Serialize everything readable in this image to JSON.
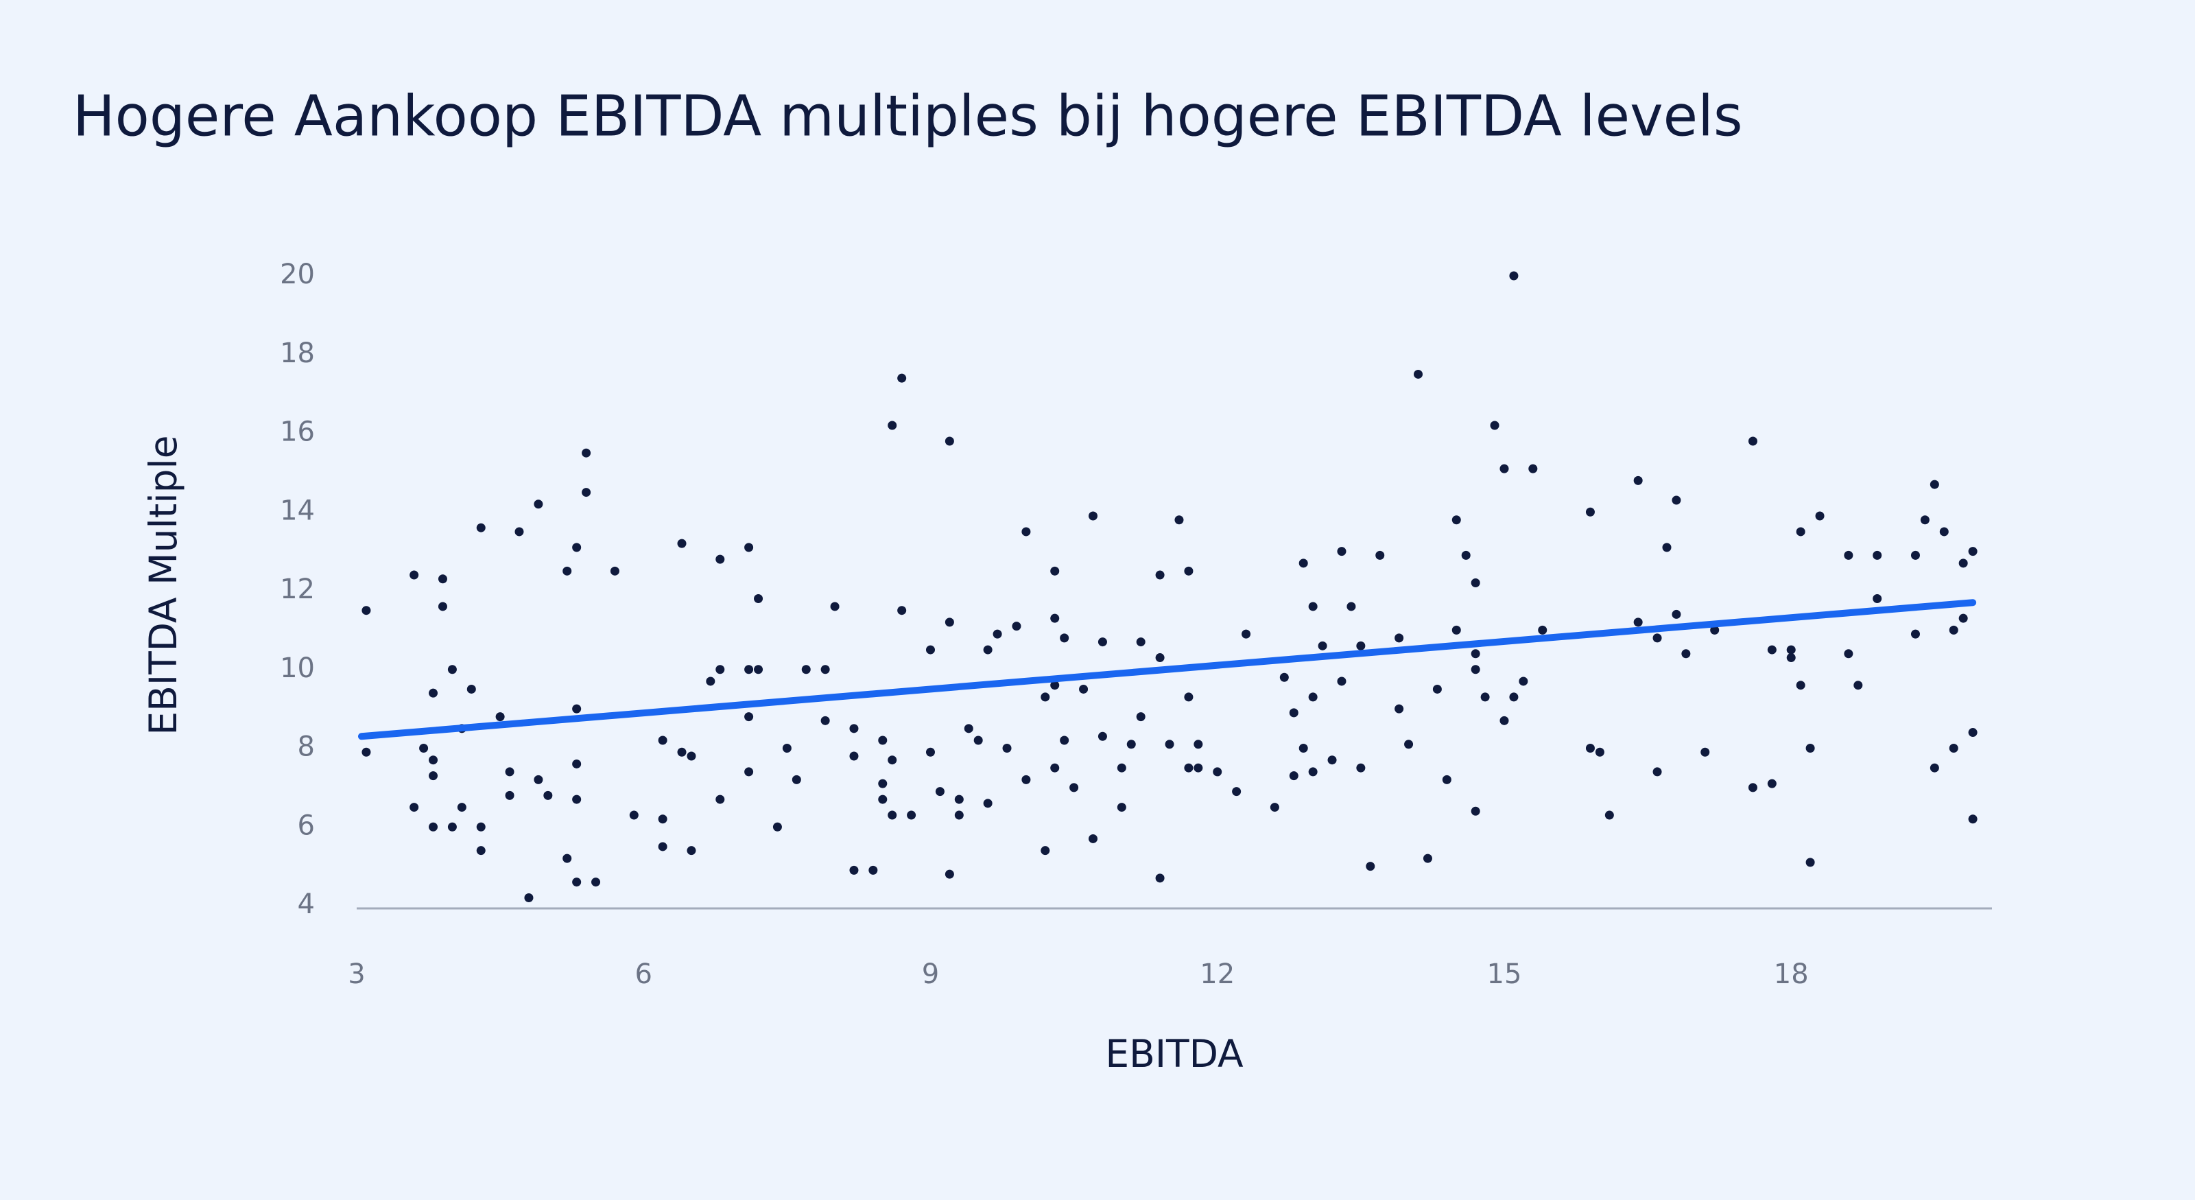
{
  "chart_data": {
    "type": "scatter",
    "title": "Hogere Aankoop EBITDA multiples bij hogere EBITDA levels",
    "x_label": "EBITDA",
    "y_label": "EBITDA Multiple",
    "xlim": [
      3,
      20.1
    ],
    "xticks": [
      3,
      6,
      9,
      12,
      15,
      18
    ],
    "ylim": [
      4,
      20
    ],
    "yticks": [
      4,
      6,
      8,
      10,
      12,
      14,
      16,
      18,
      20
    ],
    "series": [
      {
        "type": "scatter",
        "color": "#0f1a3d",
        "x": [
          3.1,
          3.1,
          3.6,
          3.6,
          3.7,
          3.8,
          3.8,
          3.8,
          3.8,
          3.9,
          3.9,
          4.0,
          4.0,
          4.1,
          4.1,
          4.2,
          4.3,
          4.3,
          4.3,
          4.5,
          4.6,
          4.6,
          4.7,
          4.8,
          4.9,
          4.9,
          5.0,
          5.2,
          5.2,
          5.3,
          5.3,
          5.3,
          5.3,
          5.3,
          5.4,
          5.4,
          5.5,
          5.7,
          5.9,
          6.2,
          6.2,
          6.2,
          6.4,
          6.4,
          6.5,
          6.5,
          6.7,
          6.8,
          6.8,
          6.8,
          7.1,
          7.1,
          7.1,
          7.1,
          7.2,
          7.2,
          7.4,
          7.5,
          7.6,
          7.7,
          7.9,
          7.9,
          8.0,
          8.2,
          8.2,
          8.2,
          8.4,
          8.5,
          8.5,
          8.5,
          8.6,
          8.6,
          8.6,
          8.7,
          8.7,
          8.8,
          9.0,
          9.0,
          9.1,
          9.2,
          9.2,
          9.2,
          9.3,
          9.3,
          9.4,
          9.5,
          9.6,
          9.6,
          9.7,
          9.8,
          9.9,
          10.0,
          10.0,
          10.2,
          10.2,
          10.3,
          10.3,
          10.3,
          10.3,
          10.4,
          10.4,
          10.5,
          10.6,
          10.7,
          10.7,
          10.8,
          10.8,
          11.0,
          11.0,
          11.1,
          11.2,
          11.2,
          11.4,
          11.4,
          11.4,
          11.5,
          11.6,
          11.7,
          11.7,
          11.7,
          11.8,
          11.8,
          12.0,
          12.2,
          12.3,
          12.6,
          12.7,
          12.8,
          12.8,
          12.9,
          12.9,
          13.0,
          13.0,
          13.0,
          13.1,
          13.2,
          13.3,
          13.3,
          13.4,
          13.5,
          13.5,
          13.6,
          13.7,
          13.9,
          13.9,
          14.0,
          14.1,
          14.2,
          14.3,
          14.4,
          14.5,
          14.5,
          14.6,
          14.7,
          14.7,
          14.7,
          14.7,
          14.8,
          14.9,
          15.0,
          15.0,
          15.1,
          15.1,
          15.2,
          15.3,
          15.4,
          15.9,
          15.9,
          16.0,
          16.1,
          16.4,
          16.4,
          16.6,
          16.6,
          16.7,
          16.8,
          16.8,
          16.9,
          17.1,
          17.2,
          17.6,
          17.6,
          17.8,
          17.8,
          18.0,
          18.0,
          18.1,
          18.1,
          18.2,
          18.2,
          18.3,
          18.6,
          18.6,
          18.7,
          18.9,
          18.9,
          19.3,
          19.3,
          19.4,
          19.5,
          19.5,
          19.6,
          19.7,
          19.7,
          19.8,
          19.8,
          19.9,
          19.9,
          19.9
        ],
        "values": [
          7.9,
          11.5,
          6.5,
          12.4,
          8.0,
          6.0,
          7.7,
          9.4,
          7.3,
          11.6,
          12.3,
          6.0,
          10.0,
          6.5,
          8.5,
          9.5,
          13.6,
          6.0,
          5.4,
          8.8,
          7.4,
          6.8,
          13.5,
          4.2,
          7.2,
          14.2,
          6.8,
          5.2,
          12.5,
          7.6,
          4.6,
          6.7,
          13.1,
          9.0,
          15.5,
          14.5,
          4.6,
          12.5,
          6.3,
          6.2,
          5.5,
          8.2,
          7.9,
          13.2,
          5.4,
          7.8,
          9.7,
          12.8,
          10.0,
          6.7,
          8.8,
          13.1,
          7.4,
          10.0,
          11.8,
          10.0,
          6.0,
          8.0,
          7.2,
          10.0,
          10.0,
          8.7,
          11.6,
          8.5,
          7.8,
          4.9,
          4.9,
          6.7,
          8.2,
          7.1,
          7.7,
          16.2,
          6.3,
          17.4,
          11.5,
          6.3,
          7.9,
          10.5,
          6.9,
          15.8,
          11.2,
          4.8,
          6.3,
          6.7,
          8.5,
          8.2,
          6.6,
          10.5,
          10.9,
          8.0,
          11.1,
          13.5,
          7.2,
          5.4,
          9.3,
          12.5,
          11.3,
          7.5,
          9.6,
          8.2,
          10.8,
          7.0,
          9.5,
          5.7,
          13.9,
          8.3,
          10.7,
          7.5,
          6.5,
          8.1,
          10.7,
          8.8,
          12.4,
          4.7,
          10.3,
          8.1,
          13.8,
          9.3,
          7.5,
          12.5,
          8.1,
          7.5,
          7.4,
          6.9,
          10.9,
          6.5,
          9.8,
          8.9,
          7.3,
          12.7,
          8.0,
          7.4,
          9.3,
          11.6,
          10.6,
          7.7,
          9.7,
          13.0,
          11.6,
          10.6,
          7.5,
          5.0,
          12.9,
          9.0,
          10.8,
          8.1,
          17.5,
          5.2,
          9.5,
          7.2,
          13.8,
          11.0,
          12.9,
          12.2,
          6.4,
          10.4,
          10.0,
          9.3,
          16.2,
          15.1,
          8.7,
          20.0,
          9.3,
          9.7,
          15.1,
          11.0,
          8.0,
          14.0,
          7.9,
          6.3,
          14.8,
          11.2,
          7.4,
          10.8,
          13.1,
          11.4,
          14.3,
          10.4,
          7.9,
          11.0,
          7.0,
          15.8,
          7.1,
          10.5,
          10.5,
          10.3,
          13.5,
          9.6,
          8.0,
          5.1,
          13.9,
          10.4,
          12.9,
          9.6,
          11.8,
          12.9,
          12.9,
          10.9,
          13.8,
          14.7,
          7.5,
          13.5,
          11.0,
          8.0,
          12.7,
          11.3,
          8.4,
          13.0,
          6.2
        ]
      },
      {
        "type": "line",
        "color": "#1a66f0",
        "x": [
          3.05,
          19.9
        ],
        "values": [
          8.3,
          11.7
        ]
      }
    ]
  }
}
